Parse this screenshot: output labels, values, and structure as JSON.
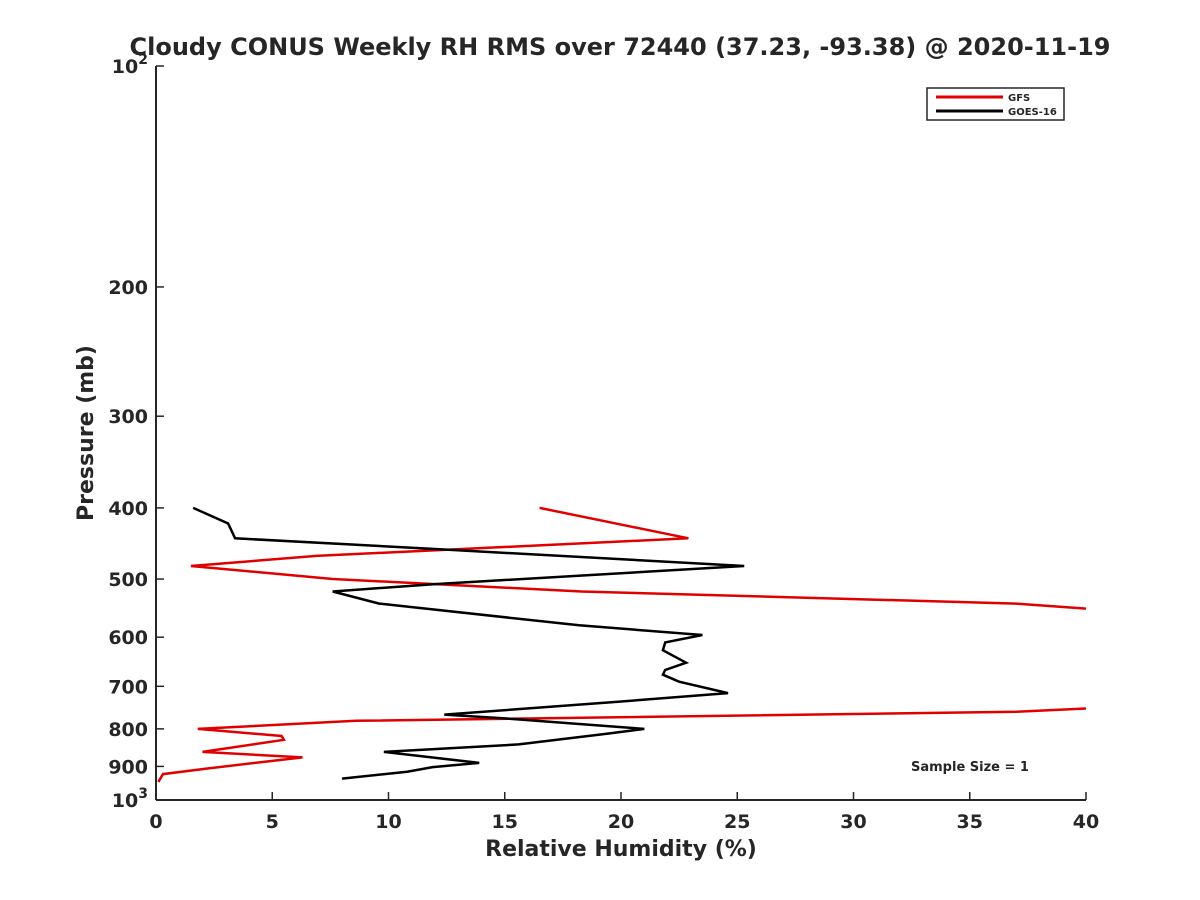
{
  "chart_data": {
    "type": "line",
    "title": "Cloudy CONUS Weekly RH RMS over 72440 (37.23, -93.38) @ 2020-11-19",
    "xlabel": "Relative Humidity (%)",
    "ylabel": "Pressure (mb)",
    "xlim": [
      0,
      40
    ],
    "ylim": [
      100,
      1000
    ],
    "y_scale": "log",
    "y_reversed": true,
    "grid": false,
    "x_ticks": [
      "0",
      "5",
      "10",
      "15",
      "20",
      "25",
      "30",
      "35",
      "40"
    ],
    "y_ticks": [
      {
        "value": 100,
        "base": "10",
        "exp": "2"
      },
      {
        "value": 200,
        "label": "200"
      },
      {
        "value": 300,
        "label": "300"
      },
      {
        "value": 400,
        "label": "400"
      },
      {
        "value": 500,
        "label": "500"
      },
      {
        "value": 600,
        "label": "600"
      },
      {
        "value": 700,
        "label": "700"
      },
      {
        "value": 800,
        "label": "800"
      },
      {
        "value": 900,
        "label": "900"
      },
      {
        "value": 1000,
        "base": "10",
        "exp": "3"
      }
    ],
    "legend": {
      "placement": "top-right",
      "entries": [
        {
          "name": "GFS",
          "color": "#e00000"
        },
        {
          "name": "GOES-16",
          "color": "#000000"
        }
      ]
    },
    "annotation": "Sample Size = 1",
    "series": [
      {
        "name": "GFS",
        "color": "#e00000",
        "points": [
          [
            16.5,
            400
          ],
          [
            22.9,
            440
          ],
          [
            6.9,
            465
          ],
          [
            1.5,
            480
          ],
          [
            7.6,
            500
          ],
          [
            18.3,
            520
          ],
          [
            37.0,
            540
          ],
          [
            40.5,
            550
          ],
          [
            41.0,
            748
          ],
          [
            37.0,
            758
          ],
          [
            8.6,
            780
          ],
          [
            1.8,
            800
          ],
          [
            5.4,
            818
          ],
          [
            5.5,
            828
          ],
          [
            2.0,
            860
          ],
          [
            6.3,
            875
          ],
          [
            2.3,
            905
          ],
          [
            0.3,
            922
          ],
          [
            0.1,
            945
          ]
        ]
      },
      {
        "name": "GOES-16",
        "color": "#000000",
        "points": [
          [
            1.6,
            400
          ],
          [
            3.1,
            420
          ],
          [
            3.4,
            440
          ],
          [
            12.0,
            455
          ],
          [
            25.3,
            480
          ],
          [
            12.0,
            508
          ],
          [
            7.6,
            520
          ],
          [
            9.6,
            540
          ],
          [
            18.2,
            578
          ],
          [
            23.5,
            596
          ],
          [
            21.9,
            610
          ],
          [
            21.8,
            625
          ],
          [
            22.8,
            650
          ],
          [
            21.9,
            665
          ],
          [
            21.8,
            675
          ],
          [
            22.5,
            690
          ],
          [
            24.6,
            715
          ],
          [
            19.8,
            735
          ],
          [
            12.4,
            765
          ],
          [
            15.2,
            775
          ],
          [
            21.0,
            800
          ],
          [
            19.3,
            813
          ],
          [
            15.6,
            840
          ],
          [
            9.8,
            860
          ],
          [
            13.9,
            890
          ],
          [
            11.9,
            902
          ],
          [
            10.8,
            915
          ],
          [
            8.0,
            935
          ]
        ]
      }
    ]
  }
}
